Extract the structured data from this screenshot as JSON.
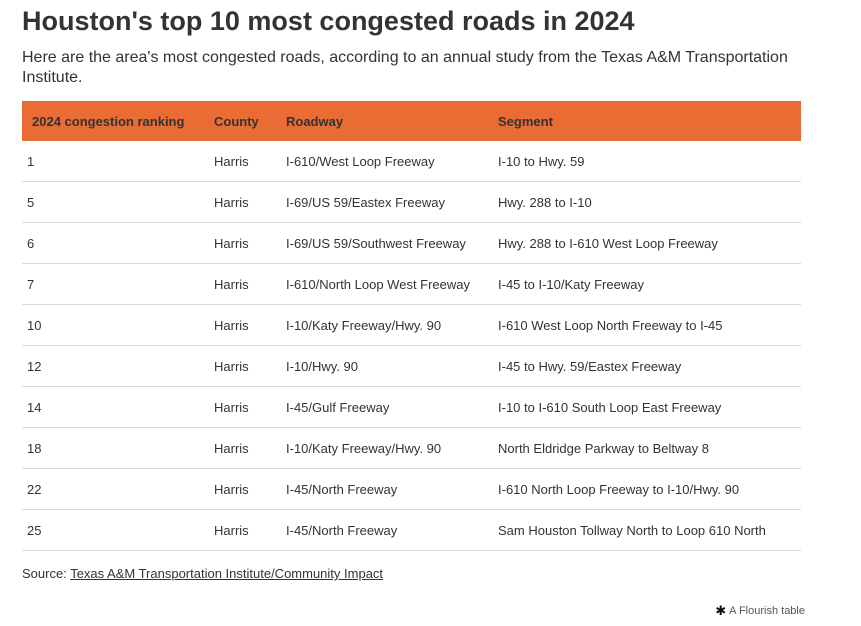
{
  "title": "Houston's top 10 most congested roads in 2024",
  "subtitle": "Here are the area's most congested roads, according to an annual study from the Texas A&M Transportation Institute.",
  "colors": {
    "header_bg": "#e86c33",
    "row_rule": "#d9d9d9"
  },
  "chart_data": {
    "type": "table",
    "columns": [
      "2024 congestion ranking",
      "County",
      "Roadway",
      "Segment"
    ],
    "rows": [
      [
        "1",
        "Harris",
        "I-610/West Loop Freeway",
        "I-10 to Hwy. 59"
      ],
      [
        "5",
        "Harris",
        "I-69/US 59/Eastex Freeway",
        "Hwy. 288 to I-10"
      ],
      [
        "6",
        "Harris",
        "I-69/US 59/Southwest Freeway",
        "Hwy. 288 to I-610 West Loop Freeway"
      ],
      [
        "7",
        "Harris",
        "I-610/North Loop West Freeway",
        "I-45 to I-10/Katy Freeway"
      ],
      [
        "10",
        "Harris",
        "I-10/Katy Freeway/Hwy. 90",
        "I-610 West Loop North Freeway to I-45"
      ],
      [
        "12",
        "Harris",
        "I-10/Hwy. 90",
        "I-45 to Hwy. 59/Eastex Freeway"
      ],
      [
        "14",
        "Harris",
        "I-45/Gulf Freeway",
        "I-10 to I-610 South Loop East Freeway"
      ],
      [
        "18",
        "Harris",
        "I-10/Katy Freeway/Hwy. 90",
        "North Eldridge Parkway to Beltway 8"
      ],
      [
        "22",
        "Harris",
        "I-45/North Freeway",
        "I-610 North Loop Freeway to I-10/Hwy. 90"
      ],
      [
        "25",
        "Harris",
        "I-45/North Freeway",
        "Sam Houston Tollway North to Loop 610 North"
      ]
    ]
  },
  "source": {
    "prefix": "Source: ",
    "link_text": "Texas A&M Transportation Institute/Community Impact"
  },
  "credit": {
    "icon": "flourish-asterisk-icon",
    "text": "A Flourish table"
  }
}
